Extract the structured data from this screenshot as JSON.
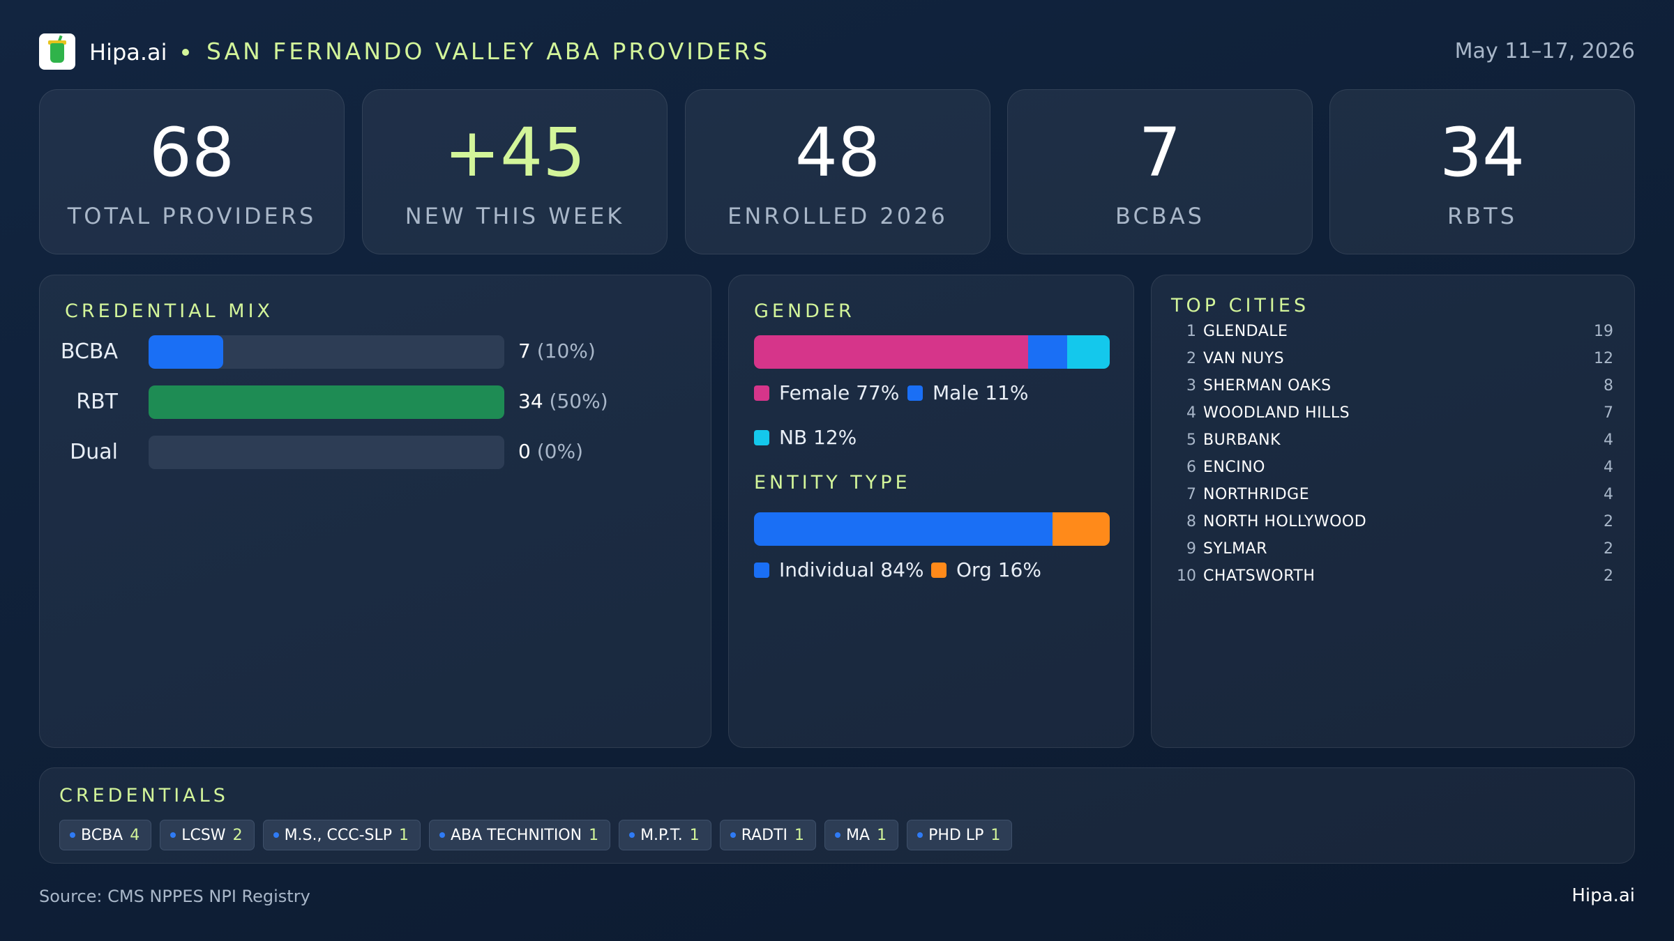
{
  "header": {
    "brand": "Hipa.ai",
    "title": "SAN FERNANDO VALLEY ABA PROVIDERS",
    "date_range": "May 11–17, 2026"
  },
  "stats": [
    {
      "value": "68",
      "label": "TOTAL PROVIDERS"
    },
    {
      "value": "+45",
      "label": "NEW THIS WEEK"
    },
    {
      "value": "48",
      "label": "ENROLLED 2026"
    },
    {
      "value": "7",
      "label": "BCBAS"
    },
    {
      "value": "34",
      "label": "RBTS"
    }
  ],
  "credential_mix": {
    "title": "CREDENTIAL MIX",
    "rows": [
      {
        "label": "BCBA",
        "value": "7",
        "pct": "(10%)"
      },
      {
        "label": "RBT",
        "value": "34",
        "pct": "(50%)"
      },
      {
        "label": "Dual",
        "value": "0",
        "pct": "(0%)"
      }
    ]
  },
  "gender": {
    "title": "GENDER",
    "legend": [
      {
        "label": "Female 77%"
      },
      {
        "label": "Male 11%"
      },
      {
        "label": "NB 12%"
      }
    ]
  },
  "entity_type": {
    "title": "ENTITY TYPE",
    "legend": [
      {
        "label": "Individual 84%"
      },
      {
        "label": "Org 16%"
      }
    ]
  },
  "top_cities": {
    "title": "TOP CITIES",
    "rows": [
      {
        "rank": "1",
        "name": "GLENDALE",
        "count": "19"
      },
      {
        "rank": "2",
        "name": "VAN NUYS",
        "count": "12"
      },
      {
        "rank": "3",
        "name": "SHERMAN OAKS",
        "count": "8"
      },
      {
        "rank": "4",
        "name": "WOODLAND HILLS",
        "count": "7"
      },
      {
        "rank": "5",
        "name": "BURBANK",
        "count": "4"
      },
      {
        "rank": "6",
        "name": "ENCINO",
        "count": "4"
      },
      {
        "rank": "7",
        "name": "NORTHRIDGE",
        "count": "4"
      },
      {
        "rank": "8",
        "name": "NORTH HOLLYWOOD",
        "count": "2"
      },
      {
        "rank": "9",
        "name": "SYLMAR",
        "count": "2"
      },
      {
        "rank": "10",
        "name": "CHATSWORTH",
        "count": "2"
      }
    ]
  },
  "credentials": {
    "title": "CREDENTIALS",
    "chips": [
      {
        "label": "BCBA",
        "count": "4"
      },
      {
        "label": "LCSW",
        "count": "2"
      },
      {
        "label": "M.S., CCC-SLP",
        "count": "1"
      },
      {
        "label": "ABA TECHNITION",
        "count": "1"
      },
      {
        "label": "M.P.T.",
        "count": "1"
      },
      {
        "label": "RADTI",
        "count": "1"
      },
      {
        "label": "MA",
        "count": "1"
      },
      {
        "label": "PHD LP",
        "count": "1"
      }
    ]
  },
  "footer": {
    "source": "Source: CMS NPPES NPI Registry",
    "brand": "Hipa.ai"
  },
  "chart_data": [
    {
      "type": "bar",
      "title": "CREDENTIAL MIX",
      "categories": [
        "BCBA",
        "RBT",
        "Dual"
      ],
      "values": [
        7,
        34,
        0
      ],
      "fill_fractions": [
        0.21,
        1.0,
        0.0
      ],
      "colors": [
        "#1a6ff5",
        "#1e8c54",
        "#2d3d55"
      ]
    },
    {
      "type": "bar",
      "title": "GENDER",
      "categories": [
        "Female",
        "Male",
        "NB"
      ],
      "values": [
        77,
        11,
        12
      ],
      "colors": [
        "#d6358a",
        "#1a6ff5",
        "#14c8ec"
      ]
    },
    {
      "type": "bar",
      "title": "ENTITY TYPE",
      "categories": [
        "Individual",
        "Org"
      ],
      "values": [
        84,
        16
      ],
      "colors": [
        "#1a6ff5",
        "#ff8a1a"
      ]
    }
  ]
}
